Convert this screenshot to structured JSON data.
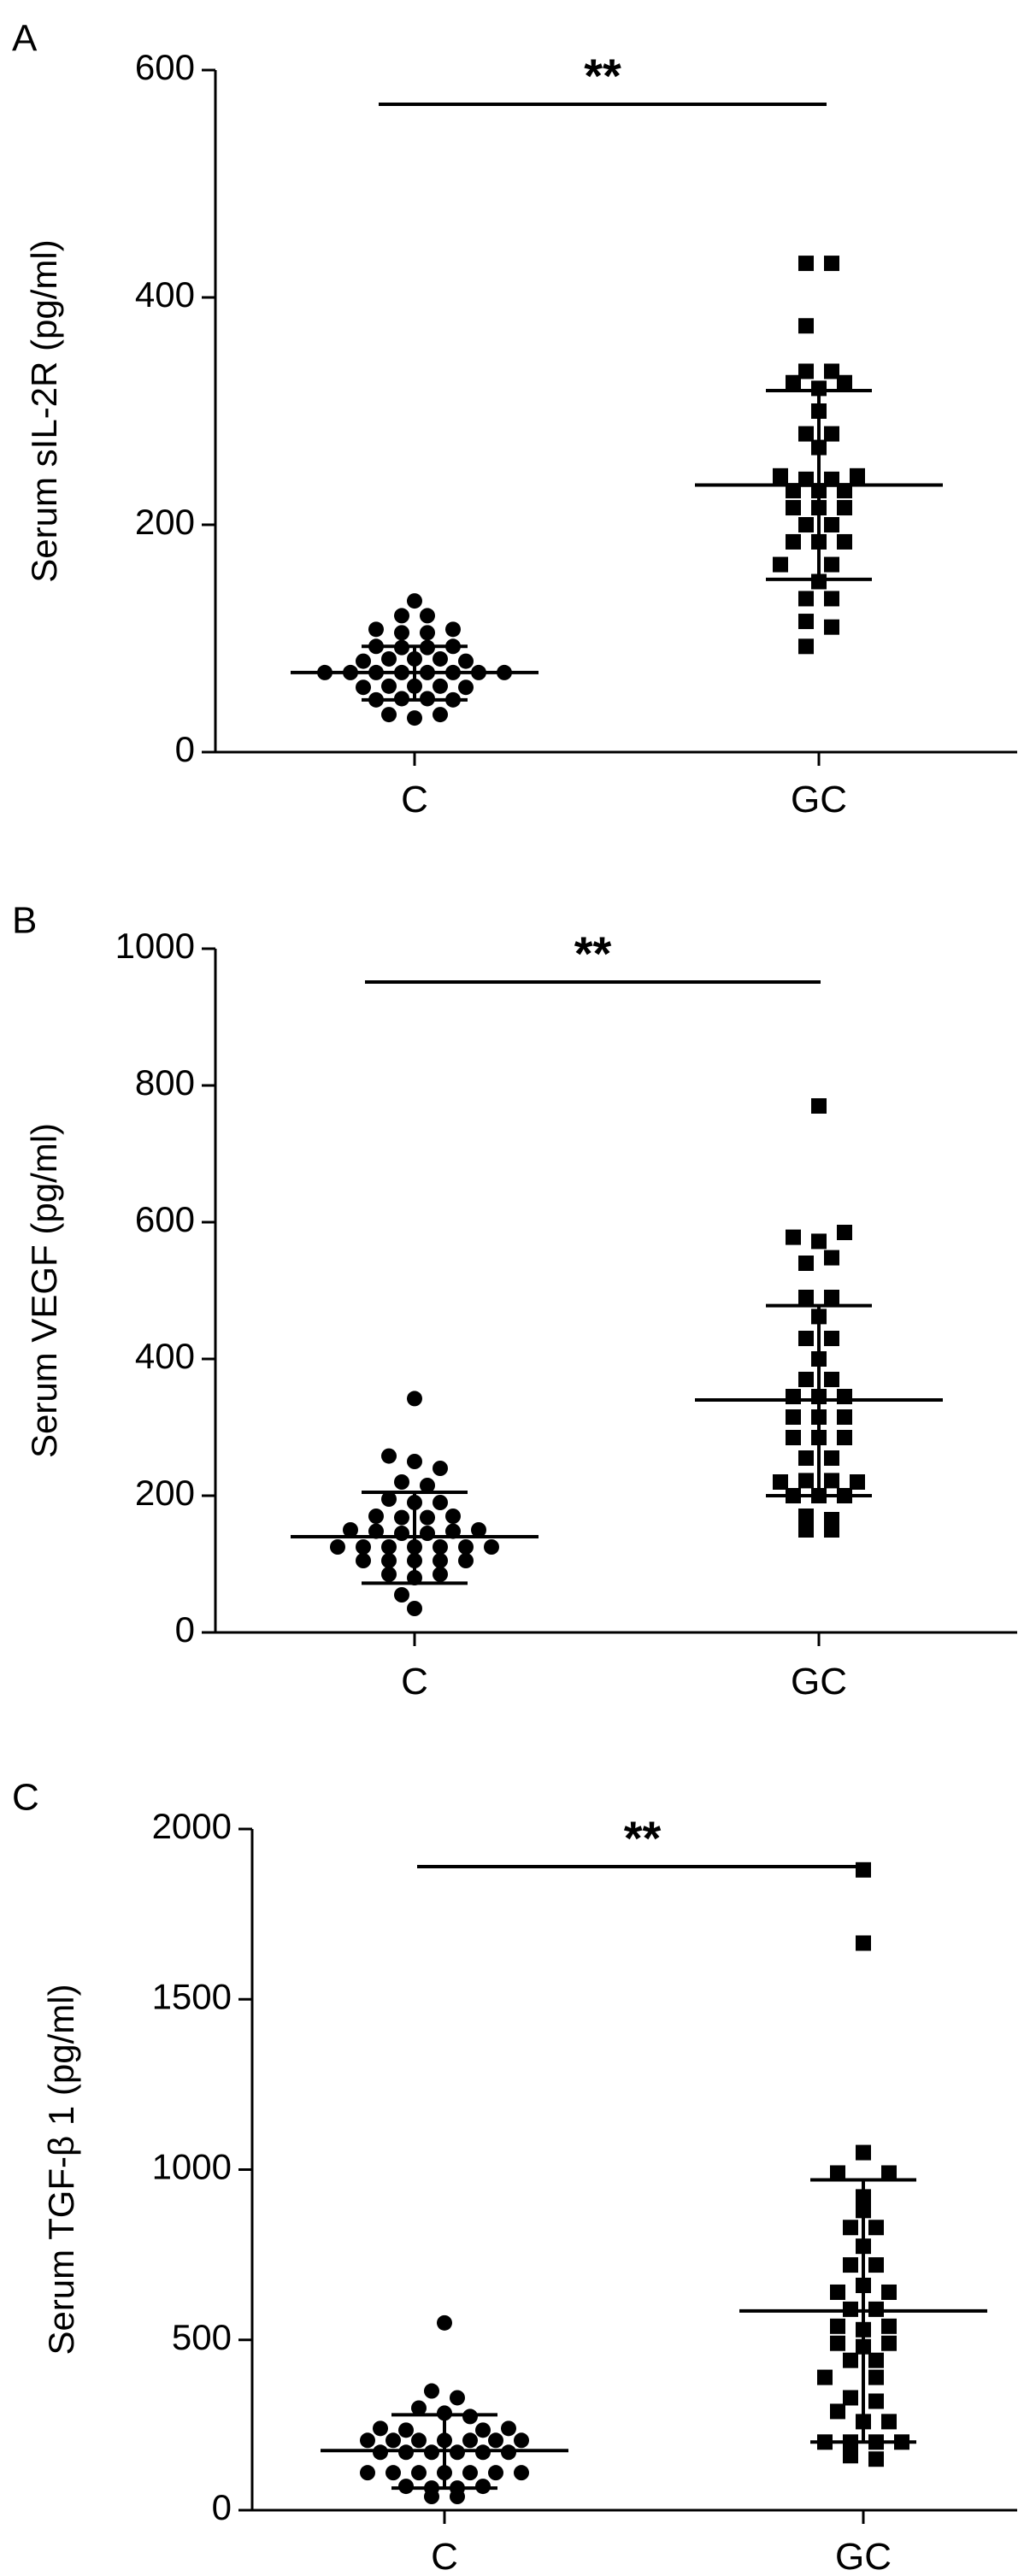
{
  "chart_data": [
    {
      "type": "scatter",
      "panel": "A",
      "ylabel": "Serum sIL-2R (pg/ml)",
      "categories": [
        "C",
        "GC"
      ],
      "yticks": [
        0,
        200,
        400,
        600
      ],
      "ylim": [
        0,
        600
      ],
      "significance": "**",
      "groups": [
        {
          "name": "C",
          "marker": "circle",
          "mean": 70,
          "sd_upper": 93,
          "sd_lower": 46,
          "points": [
            {
              "rank": 0,
              "value": 133
            },
            {
              "rank": -1,
              "value": 120
            },
            {
              "rank": 1,
              "value": 120
            },
            {
              "rank": -3,
              "value": 108
            },
            {
              "rank": -1,
              "value": 105
            },
            {
              "rank": 1,
              "value": 105
            },
            {
              "rank": 3,
              "value": 108
            },
            {
              "rank": -3,
              "value": 93
            },
            {
              "rank": -1,
              "value": 92
            },
            {
              "rank": 1,
              "value": 92
            },
            {
              "rank": 3,
              "value": 93
            },
            {
              "rank": -4,
              "value": 80
            },
            {
              "rank": -2,
              "value": 82
            },
            {
              "rank": 0,
              "value": 82
            },
            {
              "rank": 2,
              "value": 82
            },
            {
              "rank": 4,
              "value": 80
            },
            {
              "rank": -7,
              "value": 70
            },
            {
              "rank": -5,
              "value": 70
            },
            {
              "rank": -3,
              "value": 70
            },
            {
              "rank": -1,
              "value": 70
            },
            {
              "rank": 1,
              "value": 70
            },
            {
              "rank": 3,
              "value": 70
            },
            {
              "rank": 5,
              "value": 70
            },
            {
              "rank": 7,
              "value": 70
            },
            {
              "rank": -4,
              "value": 57
            },
            {
              "rank": -2,
              "value": 58
            },
            {
              "rank": 0,
              "value": 58
            },
            {
              "rank": 2,
              "value": 58
            },
            {
              "rank": 4,
              "value": 57
            },
            {
              "rank": -3,
              "value": 46
            },
            {
              "rank": -1,
              "value": 47
            },
            {
              "rank": 1,
              "value": 47
            },
            {
              "rank": 3,
              "value": 46
            },
            {
              "rank": -2,
              "value": 33
            },
            {
              "rank": 0,
              "value": 30
            },
            {
              "rank": 2,
              "value": 33
            }
          ]
        },
        {
          "name": "GC",
          "marker": "square",
          "mean": 235,
          "sd_upper": 318,
          "sd_lower": 152,
          "points": [
            {
              "rank": -1,
              "value": 430
            },
            {
              "rank": 1,
              "value": 430
            },
            {
              "rank": -1,
              "value": 375
            },
            {
              "rank": -1,
              "value": 335
            },
            {
              "rank": 1,
              "value": 335
            },
            {
              "rank": -2,
              "value": 325
            },
            {
              "rank": 0,
              "value": 320
            },
            {
              "rank": 2,
              "value": 325
            },
            {
              "rank": 0,
              "value": 300
            },
            {
              "rank": -1,
              "value": 280
            },
            {
              "rank": 1,
              "value": 280
            },
            {
              "rank": 0,
              "value": 268
            },
            {
              "rank": -3,
              "value": 243
            },
            {
              "rank": -1,
              "value": 240
            },
            {
              "rank": 1,
              "value": 240
            },
            {
              "rank": 3,
              "value": 243
            },
            {
              "rank": -2,
              "value": 230
            },
            {
              "rank": 0,
              "value": 230
            },
            {
              "rank": 2,
              "value": 230
            },
            {
              "rank": -2,
              "value": 215
            },
            {
              "rank": 0,
              "value": 215
            },
            {
              "rank": 2,
              "value": 215
            },
            {
              "rank": -1,
              "value": 200
            },
            {
              "rank": 1,
              "value": 200
            },
            {
              "rank": -2,
              "value": 185
            },
            {
              "rank": 0,
              "value": 185
            },
            {
              "rank": 2,
              "value": 185
            },
            {
              "rank": -3,
              "value": 165
            },
            {
              "rank": 1,
              "value": 165
            },
            {
              "rank": 0,
              "value": 150
            },
            {
              "rank": -1,
              "value": 135
            },
            {
              "rank": 1,
              "value": 135
            },
            {
              "rank": -1,
              "value": 115
            },
            {
              "rank": 1,
              "value": 110
            },
            {
              "rank": -1,
              "value": 93
            }
          ]
        }
      ]
    },
    {
      "type": "scatter",
      "panel": "B",
      "ylabel": "Serum VEGF (pg/ml)",
      "categories": [
        "C",
        "GC"
      ],
      "yticks": [
        0,
        200,
        400,
        600,
        800,
        1000
      ],
      "ylim": [
        0,
        1000
      ],
      "significance": "**",
      "groups": [
        {
          "name": "C",
          "marker": "circle",
          "mean": 140,
          "sd_upper": 205,
          "sd_lower": 72,
          "points": [
            {
              "rank": 0,
              "value": 342
            },
            {
              "rank": -2,
              "value": 258
            },
            {
              "rank": 0,
              "value": 250
            },
            {
              "rank": 2,
              "value": 240
            },
            {
              "rank": -1,
              "value": 220
            },
            {
              "rank": 1,
              "value": 215
            },
            {
              "rank": -2,
              "value": 195
            },
            {
              "rank": 0,
              "value": 190
            },
            {
              "rank": 2,
              "value": 190
            },
            {
              "rank": -3,
              "value": 170
            },
            {
              "rank": -1,
              "value": 168
            },
            {
              "rank": 1,
              "value": 168
            },
            {
              "rank": 3,
              "value": 170
            },
            {
              "rank": -5,
              "value": 150
            },
            {
              "rank": -3,
              "value": 148
            },
            {
              "rank": -1,
              "value": 145
            },
            {
              "rank": 1,
              "value": 145
            },
            {
              "rank": 3,
              "value": 148
            },
            {
              "rank": 5,
              "value": 150
            },
            {
              "rank": -6,
              "value": 125
            },
            {
              "rank": -4,
              "value": 125
            },
            {
              "rank": -2,
              "value": 125
            },
            {
              "rank": 0,
              "value": 125
            },
            {
              "rank": 2,
              "value": 125
            },
            {
              "rank": 4,
              "value": 125
            },
            {
              "rank": 6,
              "value": 125
            },
            {
              "rank": -4,
              "value": 105
            },
            {
              "rank": -2,
              "value": 105
            },
            {
              "rank": 0,
              "value": 105
            },
            {
              "rank": 2,
              "value": 105
            },
            {
              "rank": 4,
              "value": 105
            },
            {
              "rank": -2,
              "value": 85
            },
            {
              "rank": 0,
              "value": 80
            },
            {
              "rank": 2,
              "value": 85
            },
            {
              "rank": -1,
              "value": 55
            },
            {
              "rank": 0,
              "value": 35
            }
          ]
        },
        {
          "name": "GC",
          "marker": "square",
          "mean": 340,
          "sd_upper": 478,
          "sd_lower": 200,
          "points": [
            {
              "rank": 0,
              "value": 770
            },
            {
              "rank": -2,
              "value": 578
            },
            {
              "rank": 0,
              "value": 572
            },
            {
              "rank": 2,
              "value": 585
            },
            {
              "rank": -1,
              "value": 540
            },
            {
              "rank": 1,
              "value": 548
            },
            {
              "rank": -1,
              "value": 490
            },
            {
              "rank": 1,
              "value": 490
            },
            {
              "rank": 0,
              "value": 462
            },
            {
              "rank": -1,
              "value": 430
            },
            {
              "rank": 1,
              "value": 430
            },
            {
              "rank": 0,
              "value": 400
            },
            {
              "rank": -1,
              "value": 370
            },
            {
              "rank": 1,
              "value": 370
            },
            {
              "rank": -2,
              "value": 345
            },
            {
              "rank": 0,
              "value": 345
            },
            {
              "rank": 2,
              "value": 345
            },
            {
              "rank": -2,
              "value": 315
            },
            {
              "rank": 0,
              "value": 315
            },
            {
              "rank": 2,
              "value": 315
            },
            {
              "rank": -2,
              "value": 285
            },
            {
              "rank": 0,
              "value": 285
            },
            {
              "rank": 2,
              "value": 285
            },
            {
              "rank": -1,
              "value": 255
            },
            {
              "rank": 1,
              "value": 255
            },
            {
              "rank": -3,
              "value": 220
            },
            {
              "rank": -1,
              "value": 222
            },
            {
              "rank": 1,
              "value": 222
            },
            {
              "rank": 3,
              "value": 220
            },
            {
              "rank": -2,
              "value": 200
            },
            {
              "rank": 0,
              "value": 200
            },
            {
              "rank": 2,
              "value": 200
            },
            {
              "rank": -1,
              "value": 170
            },
            {
              "rank": 1,
              "value": 165
            },
            {
              "rank": -1,
              "value": 150
            },
            {
              "rank": 1,
              "value": 150
            }
          ]
        }
      ]
    },
    {
      "type": "scatter",
      "panel": "C",
      "ylabel": "Serum TGF-β 1 (pg/ml)",
      "categories": [
        "C",
        "GC"
      ],
      "yticks": [
        0,
        500,
        1000,
        1500,
        2000
      ],
      "ylim": [
        0,
        2000
      ],
      "significance": "**",
      "groups": [
        {
          "name": "C",
          "marker": "circle",
          "mean": 175,
          "sd_upper": 280,
          "sd_lower": 65,
          "points": [
            {
              "rank": 0,
              "value": 550
            },
            {
              "rank": -1,
              "value": 350
            },
            {
              "rank": 1,
              "value": 330
            },
            {
              "rank": -2,
              "value": 300
            },
            {
              "rank": 0,
              "value": 285
            },
            {
              "rank": 2,
              "value": 275
            },
            {
              "rank": -5,
              "value": 240
            },
            {
              "rank": -3,
              "value": 235
            },
            {
              "rank": 3,
              "value": 235
            },
            {
              "rank": 5,
              "value": 240
            },
            {
              "rank": -6,
              "value": 205
            },
            {
              "rank": -4,
              "value": 205
            },
            {
              "rank": -2,
              "value": 205
            },
            {
              "rank": 0,
              "value": 205
            },
            {
              "rank": 2,
              "value": 205
            },
            {
              "rank": 4,
              "value": 205
            },
            {
              "rank": 6,
              "value": 205
            },
            {
              "rank": -5,
              "value": 170
            },
            {
              "rank": -3,
              "value": 170
            },
            {
              "rank": -1,
              "value": 170
            },
            {
              "rank": 1,
              "value": 170
            },
            {
              "rank": 3,
              "value": 170
            },
            {
              "rank": 5,
              "value": 170
            },
            {
              "rank": -6,
              "value": 110
            },
            {
              "rank": -4,
              "value": 110
            },
            {
              "rank": -2,
              "value": 110
            },
            {
              "rank": 0,
              "value": 110
            },
            {
              "rank": 2,
              "value": 110
            },
            {
              "rank": 4,
              "value": 110
            },
            {
              "rank": 6,
              "value": 110
            },
            {
              "rank": -3,
              "value": 70
            },
            {
              "rank": -1,
              "value": 65
            },
            {
              "rank": 1,
              "value": 65
            },
            {
              "rank": 3,
              "value": 70
            },
            {
              "rank": -1,
              "value": 40
            },
            {
              "rank": 1,
              "value": 40
            }
          ]
        },
        {
          "name": "GC",
          "marker": "square",
          "mean": 585,
          "sd_upper": 970,
          "sd_lower": 200,
          "points": [
            {
              "rank": 0,
              "value": 1880
            },
            {
              "rank": 0,
              "value": 1665
            },
            {
              "rank": 0,
              "value": 1050
            },
            {
              "rank": -2,
              "value": 990
            },
            {
              "rank": 2,
              "value": 990
            },
            {
              "rank": 0,
              "value": 920
            },
            {
              "rank": 0,
              "value": 880
            },
            {
              "rank": -1,
              "value": 830
            },
            {
              "rank": 1,
              "value": 830
            },
            {
              "rank": 0,
              "value": 775
            },
            {
              "rank": -1,
              "value": 720
            },
            {
              "rank": 1,
              "value": 720
            },
            {
              "rank": -2,
              "value": 640
            },
            {
              "rank": 0,
              "value": 660
            },
            {
              "rank": 2,
              "value": 640
            },
            {
              "rank": -1,
              "value": 590
            },
            {
              "rank": 1,
              "value": 590
            },
            {
              "rank": -2,
              "value": 540
            },
            {
              "rank": 0,
              "value": 530
            },
            {
              "rank": 2,
              "value": 540
            },
            {
              "rank": -2,
              "value": 490
            },
            {
              "rank": 0,
              "value": 480
            },
            {
              "rank": 2,
              "value": 490
            },
            {
              "rank": -1,
              "value": 440
            },
            {
              "rank": 1,
              "value": 440
            },
            {
              "rank": -3,
              "value": 390
            },
            {
              "rank": 1,
              "value": 390
            },
            {
              "rank": -1,
              "value": 330
            },
            {
              "rank": 1,
              "value": 320
            },
            {
              "rank": -2,
              "value": 290
            },
            {
              "rank": 0,
              "value": 260
            },
            {
              "rank": 2,
              "value": 260
            },
            {
              "rank": -3,
              "value": 200
            },
            {
              "rank": -1,
              "value": 200
            },
            {
              "rank": 1,
              "value": 200
            },
            {
              "rank": 3,
              "value": 200
            },
            {
              "rank": -1,
              "value": 160
            },
            {
              "rank": 1,
              "value": 150
            }
          ]
        }
      ]
    }
  ]
}
